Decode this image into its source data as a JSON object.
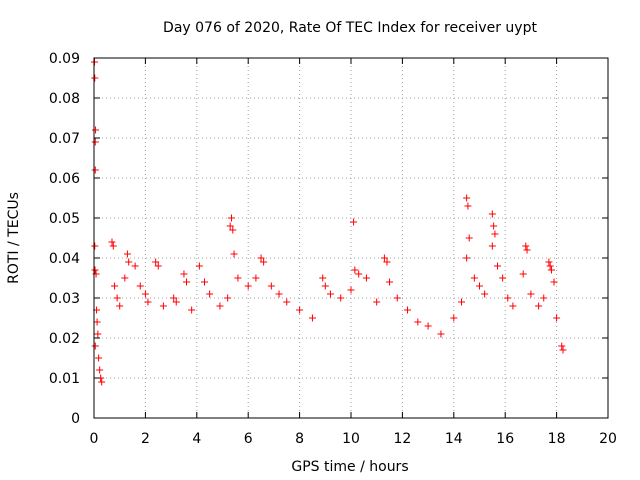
{
  "chart_data": {
    "type": "scatter",
    "title": "Day 076 of 2020, Rate Of TEC Index for receiver uypt",
    "xlabel": "GPS time / hours",
    "ylabel": "ROTI / TECUs",
    "xlim": [
      0,
      20
    ],
    "ylim": [
      0,
      0.09
    ],
    "x_ticks": [
      "0",
      "2",
      "4",
      "6",
      "8",
      "10",
      "12",
      "14",
      "16",
      "18",
      "20"
    ],
    "y_ticks": [
      "0",
      "0.01",
      "0.02",
      "0.03",
      "0.04",
      "0.05",
      "0.06",
      "0.07",
      "0.08",
      "0.09"
    ],
    "grid": true,
    "marker": "+",
    "series": [
      {
        "name": "ROTI",
        "color": "#ff0000",
        "points": [
          [
            0.02,
            0.089
          ],
          [
            0.03,
            0.085
          ],
          [
            0.06,
            0.072
          ],
          [
            0.05,
            0.069
          ],
          [
            0.05,
            0.062
          ],
          [
            0.03,
            0.043
          ],
          [
            0.04,
            0.037
          ],
          [
            0.08,
            0.036
          ],
          [
            0.1,
            0.027
          ],
          [
            0.12,
            0.024
          ],
          [
            0.15,
            0.021
          ],
          [
            0.05,
            0.018
          ],
          [
            0.18,
            0.015
          ],
          [
            0.22,
            0.012
          ],
          [
            0.26,
            0.01
          ],
          [
            0.3,
            0.009
          ],
          [
            0.7,
            0.044
          ],
          [
            0.75,
            0.043
          ],
          [
            0.8,
            0.033
          ],
          [
            0.9,
            0.03
          ],
          [
            1.0,
            0.028
          ],
          [
            1.2,
            0.035
          ],
          [
            1.3,
            0.041
          ],
          [
            1.35,
            0.039
          ],
          [
            1.6,
            0.038
          ],
          [
            1.8,
            0.033
          ],
          [
            2.0,
            0.031
          ],
          [
            2.1,
            0.029
          ],
          [
            2.4,
            0.039
          ],
          [
            2.5,
            0.038
          ],
          [
            2.7,
            0.028
          ],
          [
            3.1,
            0.03
          ],
          [
            3.2,
            0.029
          ],
          [
            3.5,
            0.036
          ],
          [
            3.6,
            0.034
          ],
          [
            3.8,
            0.027
          ],
          [
            4.1,
            0.038
          ],
          [
            4.3,
            0.034
          ],
          [
            4.5,
            0.031
          ],
          [
            4.9,
            0.028
          ],
          [
            5.2,
            0.03
          ],
          [
            5.3,
            0.048
          ],
          [
            5.35,
            0.05
          ],
          [
            5.4,
            0.047
          ],
          [
            5.45,
            0.041
          ],
          [
            5.6,
            0.035
          ],
          [
            6.0,
            0.033
          ],
          [
            6.3,
            0.035
          ],
          [
            6.5,
            0.04
          ],
          [
            6.6,
            0.039
          ],
          [
            6.9,
            0.033
          ],
          [
            7.2,
            0.031
          ],
          [
            7.5,
            0.029
          ],
          [
            8.0,
            0.027
          ],
          [
            8.5,
            0.025
          ],
          [
            8.9,
            0.035
          ],
          [
            9.0,
            0.033
          ],
          [
            9.2,
            0.031
          ],
          [
            9.6,
            0.03
          ],
          [
            10.0,
            0.032
          ],
          [
            10.1,
            0.049
          ],
          [
            10.15,
            0.037
          ],
          [
            10.3,
            0.036
          ],
          [
            10.6,
            0.035
          ],
          [
            11.0,
            0.029
          ],
          [
            11.3,
            0.04
          ],
          [
            11.4,
            0.039
          ],
          [
            11.5,
            0.034
          ],
          [
            11.8,
            0.03
          ],
          [
            12.2,
            0.027
          ],
          [
            12.6,
            0.024
          ],
          [
            13.0,
            0.023
          ],
          [
            13.5,
            0.021
          ],
          [
            14.0,
            0.025
          ],
          [
            14.3,
            0.029
          ],
          [
            14.5,
            0.055
          ],
          [
            14.55,
            0.053
          ],
          [
            14.6,
            0.045
          ],
          [
            14.5,
            0.04
          ],
          [
            14.8,
            0.035
          ],
          [
            15.0,
            0.033
          ],
          [
            15.2,
            0.031
          ],
          [
            15.5,
            0.051
          ],
          [
            15.55,
            0.048
          ],
          [
            15.6,
            0.046
          ],
          [
            15.5,
            0.043
          ],
          [
            15.7,
            0.038
          ],
          [
            15.9,
            0.035
          ],
          [
            16.1,
            0.03
          ],
          [
            16.3,
            0.028
          ],
          [
            16.8,
            0.043
          ],
          [
            16.85,
            0.042
          ],
          [
            16.7,
            0.036
          ],
          [
            17.0,
            0.031
          ],
          [
            17.3,
            0.028
          ],
          [
            17.5,
            0.03
          ],
          [
            17.7,
            0.039
          ],
          [
            17.75,
            0.038
          ],
          [
            17.8,
            0.037
          ],
          [
            17.9,
            0.034
          ],
          [
            18.0,
            0.025
          ],
          [
            18.2,
            0.018
          ],
          [
            18.25,
            0.017
          ]
        ]
      }
    ]
  }
}
